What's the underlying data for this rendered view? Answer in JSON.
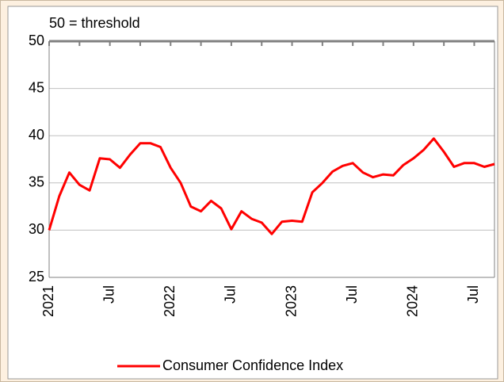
{
  "chart_data": {
    "type": "line",
    "annotation": "50 = threshold",
    "categories": [
      "2021",
      null,
      null,
      null,
      null,
      null,
      "Jul",
      null,
      null,
      null,
      null,
      null,
      "2022",
      null,
      null,
      null,
      null,
      null,
      "Jul",
      null,
      null,
      null,
      null,
      null,
      "2023",
      null,
      null,
      null,
      null,
      null,
      "Jul",
      null,
      null,
      null,
      null,
      null,
      "2024",
      null,
      null,
      null,
      null,
      null,
      "Jul",
      null,
      null
    ],
    "series": [
      {
        "name": "Consumer Confidence Index",
        "color": "#ff0000",
        "values": [
          30.0,
          33.6,
          36.1,
          34.8,
          34.2,
          37.6,
          37.5,
          36.6,
          38.0,
          39.2,
          39.2,
          38.8,
          36.6,
          35.0,
          32.5,
          32.0,
          33.1,
          32.3,
          30.1,
          32.0,
          31.2,
          30.8,
          29.6,
          30.9,
          31.0,
          30.9,
          34.0,
          35.0,
          36.2,
          36.8,
          37.1,
          36.1,
          35.6,
          35.9,
          35.8,
          36.9,
          37.6,
          38.5,
          39.7,
          38.3,
          36.7,
          37.1,
          37.1,
          36.7,
          37.0
        ]
      }
    ],
    "ylim": [
      25,
      50
    ],
    "yticks": [
      25,
      30,
      35,
      40,
      45,
      50
    ],
    "grid": true,
    "legend": "bottom"
  }
}
